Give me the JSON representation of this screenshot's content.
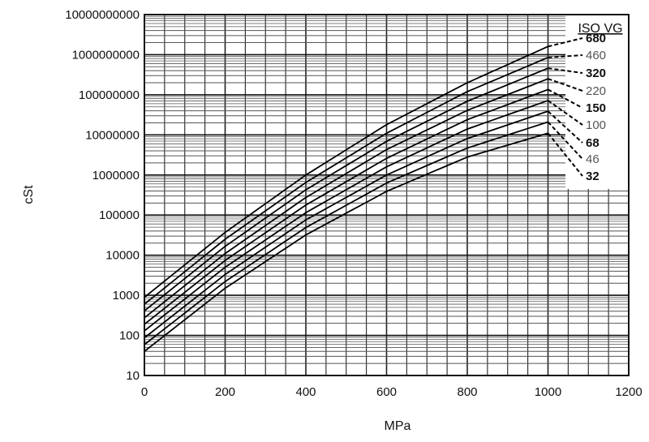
{
  "chart_data": {
    "type": "line",
    "title": "",
    "xlabel": "MPa",
    "ylabel": "cSt",
    "xlim": [
      0,
      1200
    ],
    "ylim": [
      10,
      10000000000
    ],
    "yscale": "log",
    "grid": true,
    "xticks": [
      "0",
      "200",
      "400",
      "600",
      "800",
      "1000",
      "1200"
    ],
    "yticks": [
      "10",
      "100",
      "1000",
      "10000",
      "100000",
      "1000000",
      "10000000",
      "100000000",
      "1000000000",
      "10000000000"
    ],
    "legend_title": "ISO VG",
    "legend_placement": "right",
    "x": [
      0,
      200,
      400,
      600,
      800,
      1000
    ],
    "series": [
      {
        "name": "680",
        "values": [
          890,
          37000,
          1000000,
          18000000,
          200000000,
          1600000000
        ]
      },
      {
        "name": "460",
        "values": [
          600,
          25000,
          650000,
          11000000,
          120000000,
          850000000
        ]
      },
      {
        "name": "320",
        "values": [
          410,
          16600,
          427000,
          6900000,
          69000000,
          460000000
        ]
      },
      {
        "name": "220",
        "values": [
          275,
          11000,
          275000,
          4300000,
          41000000,
          250000000
        ]
      },
      {
        "name": "150",
        "values": [
          190,
          7400,
          178000,
          2600000,
          24000000,
          135000000
        ]
      },
      {
        "name": "100",
        "values": [
          130,
          5000,
          115000,
          1600000,
          14000000,
          72000000
        ]
      },
      {
        "name": "68",
        "values": [
          87,
          3300,
          76000,
          1000000,
          8100000,
          39000000
        ]
      },
      {
        "name": "46",
        "values": [
          59,
          2200,
          49000,
          630000,
          4700000,
          21000000
        ]
      },
      {
        "name": "32",
        "values": [
          40,
          1500,
          32000,
          390000,
          2800000,
          11000000
        ]
      }
    ]
  }
}
